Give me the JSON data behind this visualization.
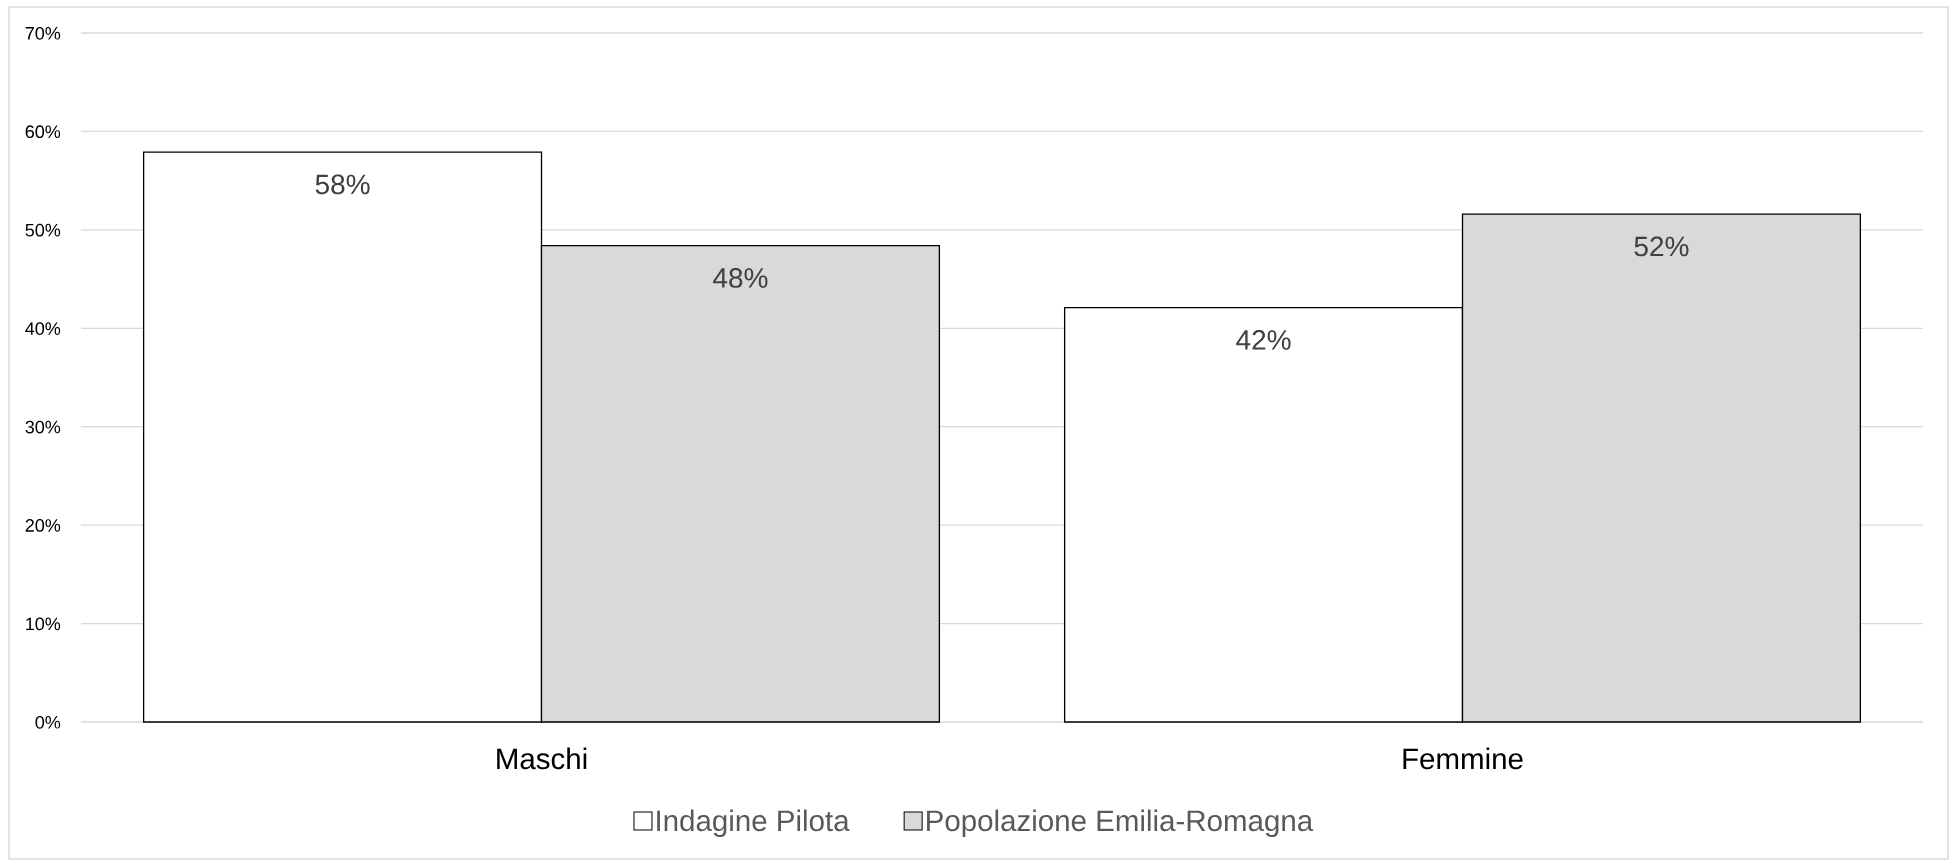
{
  "chart_data": {
    "type": "bar",
    "categories": [
      "Maschi",
      "Femmine"
    ],
    "series": [
      {
        "name": "Indagine Pilota",
        "color": "#ffffff",
        "values": [
          57.9,
          42.1
        ],
        "value_labels": [
          "58%",
          "42%"
        ]
      },
      {
        "name": "Popolazione Emilia-Romagna",
        "color": "#d9d9d9",
        "values": [
          48.4,
          51.6
        ],
        "value_labels": [
          "48%",
          "52%"
        ]
      }
    ],
    "ylim": [
      0,
      70
    ],
    "yticks": [
      {
        "value": 0,
        "label": "0%"
      },
      {
        "value": 10,
        "label": "10%"
      },
      {
        "value": 20,
        "label": "20%"
      },
      {
        "value": 30,
        "label": "30%"
      },
      {
        "value": 40,
        "label": "40%"
      },
      {
        "value": 50,
        "label": "50%"
      },
      {
        "value": 60,
        "label": "60%"
      },
      {
        "value": 70,
        "label": "70%"
      }
    ],
    "grid": "y",
    "legend": "bottom"
  }
}
